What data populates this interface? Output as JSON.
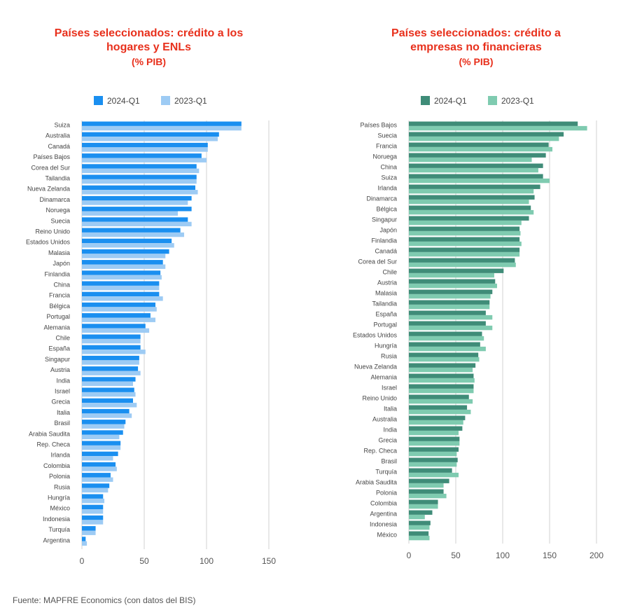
{
  "colors": {
    "left_2024": "#1a8ff0",
    "left_2023": "#9dcbf4",
    "right_2024": "#3f8c78",
    "right_2023": "#7fcbb0",
    "title": "#e8301c",
    "grid": "#d0d0d0"
  },
  "footer": "Fuente: MAPFRE Economics (con datos del BIS)",
  "chart_data": [
    {
      "type": "bar",
      "orientation": "horizontal",
      "title_lines": [
        "Países seleccionados: crédito a los",
        "hogares y ENLs"
      ],
      "subtitle": "(% PIB)",
      "xlim": [
        0,
        150
      ],
      "xticks": [
        0,
        50,
        100,
        150
      ],
      "grid": true,
      "legend": "top",
      "categories": [
        "Suiza",
        "Australia",
        "Canadá",
        "Países Bajos",
        "Corea del Sur",
        "Tailandia",
        "Nueva Zelanda",
        "Dinamarca",
        "Noruega",
        "Suecia",
        "Reino Unido",
        "Estados Unidos",
        "Malasia",
        "Japón",
        "Finlandia",
        "China",
        "Francia",
        "Bélgica",
        "Portugal",
        "Alemania",
        "Chile",
        "España",
        "Singapur",
        "Austria",
        "India",
        "Israel",
        "Grecia",
        "Italia",
        "Brasil",
        "Arabia Saudita",
        "Rep. Checa",
        "Irlanda",
        "Colombia",
        "Polonia",
        "Rusia",
        "Hungría",
        "México",
        "Indonesia",
        "Turquía",
        "Argentina"
      ],
      "series": [
        {
          "name": "2024-Q1",
          "values": [
            128,
            110,
            101,
            96,
            92,
            92,
            91,
            88,
            88,
            85,
            79,
            72,
            70,
            65,
            63,
            62,
            62,
            59,
            55,
            51,
            47,
            47,
            46,
            45,
            43,
            42,
            41,
            38,
            35,
            33,
            31,
            29,
            27,
            23,
            22,
            17,
            17,
            17,
            11,
            3
          ]
        },
        {
          "name": "2023-Q1",
          "values": [
            128,
            109,
            101,
            100,
            94,
            92,
            93,
            85,
            77,
            88,
            82,
            74,
            67,
            67,
            64,
            62,
            65,
            60,
            59,
            54,
            47,
            51,
            46,
            47,
            41,
            43,
            44,
            40,
            34,
            30,
            31,
            25,
            28,
            25,
            21,
            18,
            17,
            17,
            11,
            4
          ]
        }
      ]
    },
    {
      "type": "bar",
      "orientation": "horizontal",
      "title_lines": [
        "Países seleccionados: crédito a",
        "empresas no financieras"
      ],
      "subtitle": "(% PIB)",
      "xlim": [
        0,
        200
      ],
      "xticks": [
        0,
        50,
        100,
        150,
        200
      ],
      "grid": true,
      "legend": "top",
      "categories": [
        "Países Bajos",
        "Suecia",
        "Francia",
        "Noruega",
        "China",
        "Suiza",
        "Irlanda",
        "Dinamarca",
        "Bélgica",
        "Singapur",
        "Japón",
        "Finlandia",
        "Canadá",
        "Corea del Sur",
        "Chile",
        "Austria",
        "Malasia",
        "Tailandia",
        "España",
        "Portugal",
        "Estados Unidos",
        "Hungría",
        "Rusia",
        "Nueva Zelanda",
        "Alemania",
        "Israel",
        "Reino Unido",
        "Italia",
        "Australia",
        "India",
        "Grecia",
        "Rep. Checa",
        "Brasil",
        "Turquía",
        "Arabia Saudita",
        "Polonia",
        "Colombia",
        "Argentina",
        "Indonesia",
        "México"
      ],
      "series": [
        {
          "name": "2024-Q1",
          "values": [
            180,
            165,
            149,
            146,
            143,
            143,
            140,
            134,
            130,
            128,
            118,
            118,
            118,
            113,
            101,
            92,
            89,
            86,
            82,
            82,
            78,
            76,
            74,
            71,
            69,
            69,
            64,
            62,
            60,
            57,
            54,
            53,
            52,
            46,
            43,
            37,
            31,
            25,
            23,
            21
          ]
        },
        {
          "name": "2023-Q1",
          "values": [
            190,
            160,
            153,
            131,
            138,
            150,
            133,
            128,
            133,
            120,
            119,
            120,
            118,
            114,
            91,
            94,
            87,
            86,
            89,
            89,
            80,
            82,
            75,
            68,
            70,
            69,
            68,
            66,
            58,
            53,
            54,
            51,
            51,
            53,
            37,
            40,
            31,
            17,
            22,
            22
          ]
        }
      ]
    }
  ]
}
